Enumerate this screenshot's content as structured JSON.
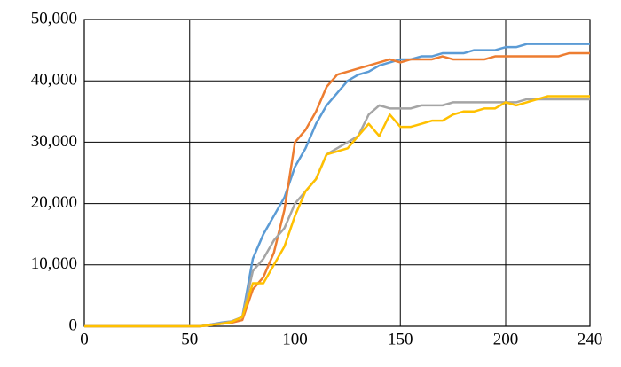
{
  "chart_data": {
    "type": "line",
    "x": [
      0,
      5,
      10,
      15,
      20,
      25,
      30,
      35,
      40,
      45,
      50,
      55,
      60,
      65,
      70,
      75,
      80,
      85,
      90,
      95,
      100,
      105,
      110,
      115,
      120,
      125,
      130,
      135,
      140,
      145,
      150,
      155,
      160,
      165,
      170,
      175,
      180,
      185,
      190,
      195,
      200,
      205,
      210,
      215,
      220,
      225,
      230,
      235,
      240
    ],
    "series": [
      {
        "color": "#5b9bd5",
        "values": [
          0,
          0,
          0,
          0,
          0,
          0,
          0,
          0,
          0,
          0,
          0,
          0,
          300,
          600,
          800,
          1500,
          11000,
          15000,
          18000,
          21000,
          26000,
          29000,
          33000,
          36000,
          38000,
          40000,
          41000,
          41500,
          42500,
          43000,
          43500,
          43500,
          44000,
          44000,
          44500,
          44500,
          44500,
          45000,
          45000,
          45000,
          45500,
          45500,
          46000,
          46000,
          46000,
          46000,
          46000,
          46000,
          46000
        ]
      },
      {
        "color": "#ed7d31",
        "values": [
          0,
          0,
          0,
          0,
          0,
          0,
          0,
          0,
          0,
          0,
          0,
          0,
          200,
          400,
          600,
          1000,
          6000,
          8000,
          12000,
          19000,
          30000,
          32000,
          35000,
          39000,
          41000,
          41500,
          42000,
          42500,
          43000,
          43500,
          43000,
          43500,
          43500,
          43500,
          44000,
          43500,
          43500,
          43500,
          43500,
          44000,
          44000,
          44000,
          44000,
          44000,
          44000,
          44000,
          44500,
          44500,
          44500
        ]
      },
      {
        "color": "#a5a5a5",
        "values": [
          0,
          0,
          0,
          0,
          0,
          0,
          0,
          0,
          0,
          0,
          0,
          0,
          300,
          500,
          800,
          1500,
          9000,
          11000,
          14000,
          16000,
          20000,
          22000,
          24000,
          28000,
          29000,
          30000,
          31000,
          34500,
          36000,
          35500,
          35500,
          35500,
          36000,
          36000,
          36000,
          36500,
          36500,
          36500,
          36500,
          36500,
          36500,
          36500,
          37000,
          37000,
          37000,
          37000,
          37000,
          37000,
          37000
        ]
      },
      {
        "color": "#ffc000",
        "values": [
          0,
          0,
          0,
          0,
          0,
          0,
          0,
          0,
          0,
          0,
          0,
          0,
          200,
          400,
          700,
          1500,
          7000,
          7000,
          10000,
          13000,
          18000,
          22000,
          24000,
          28000,
          28500,
          29000,
          31000,
          33000,
          31000,
          34500,
          32500,
          32500,
          33000,
          33500,
          33500,
          34500,
          35000,
          35000,
          35500,
          35500,
          36500,
          36000,
          36500,
          37000,
          37500,
          37500,
          37500,
          37500,
          37500
        ]
      }
    ],
    "xlim": [
      0,
      240
    ],
    "xticks": [
      0,
      50,
      100,
      150,
      200,
      240
    ],
    "ylim": [
      0,
      50000
    ],
    "yticks": [
      0,
      {
        "value": 10000,
        "label": "10,000"
      },
      {
        "value": 20000,
        "label": "20,000"
      },
      {
        "value": 30000,
        "label": "30,000"
      },
      {
        "value": 40000,
        "label": "40,000"
      },
      {
        "value": 50000,
        "label": "50,000"
      }
    ],
    "grid": true
  }
}
